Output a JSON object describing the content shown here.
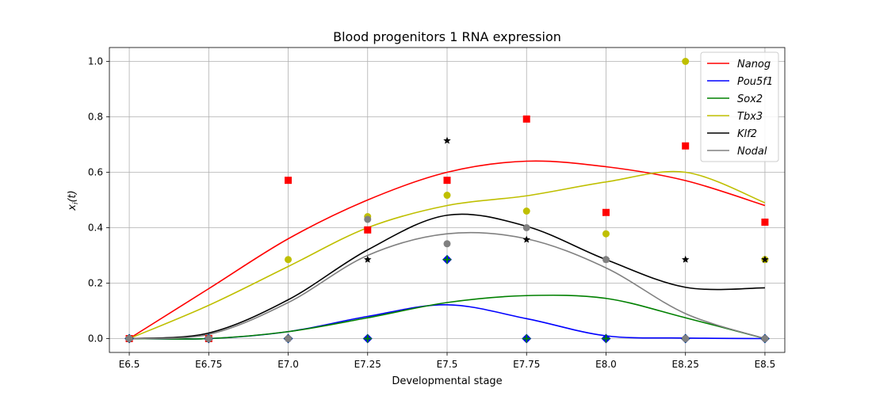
{
  "chart_data": {
    "type": "line",
    "title": "Blood progenitors 1 RNA expression",
    "xlabel": "Developmental stage",
    "ylabel": "x_i(t)",
    "categories": [
      "E6.5",
      "E6.75",
      "E7.0",
      "E7.25",
      "E7.5",
      "E7.75",
      "E8.0",
      "E8.25",
      "E8.5"
    ],
    "y_ticks": [
      "0.0",
      "0.2",
      "0.4",
      "0.6",
      "0.8",
      "1.0"
    ],
    "ylim": [
      -0.05,
      1.05
    ],
    "grid": true,
    "legend_position": "top-right",
    "series": [
      {
        "name": "Nanog",
        "color": "#ff0000",
        "marker": "square",
        "points": [
          0,
          0,
          0.571,
          0.392,
          0.571,
          0.792,
          0.455,
          0.695,
          0.42
        ],
        "curve": [
          0,
          0.18,
          0.36,
          0.5,
          0.6,
          0.64,
          0.62,
          0.57,
          0.48
        ]
      },
      {
        "name": "Pou5f1",
        "color": "#0000ff",
        "marker": "diamond",
        "points": [
          0,
          0,
          0,
          0,
          0.285,
          0,
          0,
          0,
          0
        ],
        "curve": [
          0,
          0,
          0.025,
          0.08,
          0.122,
          0.072,
          0.01,
          0.002,
          0
        ]
      },
      {
        "name": "Sox2",
        "color": "#008000",
        "marker": "plus",
        "points": [
          0,
          0,
          0,
          0,
          0.285,
          0,
          0,
          0,
          0
        ],
        "curve": [
          0,
          0,
          0.025,
          0.075,
          0.13,
          0.155,
          0.145,
          0.075,
          0
        ]
      },
      {
        "name": "Tbx3",
        "color": "#bfbf00",
        "marker": "circle",
        "points": [
          0,
          0,
          0.285,
          0.44,
          0.517,
          0.46,
          0.378,
          1.0,
          0.285
        ],
        "curve": [
          0,
          0.12,
          0.26,
          0.4,
          0.48,
          0.515,
          0.565,
          0.6,
          0.49
        ]
      },
      {
        "name": "Klf2",
        "color": "#000000",
        "marker": "star",
        "points": [
          0,
          0,
          0,
          0.285,
          0.714,
          0.357,
          0.285,
          0.285,
          0.285
        ],
        "curve": [
          0,
          0.02,
          0.14,
          0.32,
          0.445,
          0.405,
          0.285,
          0.185,
          0.183
        ]
      },
      {
        "name": "Nodal",
        "color": "#808080",
        "marker": "circle",
        "points": [
          0,
          0,
          0,
          0.43,
          0.342,
          0.4,
          0.285,
          0,
          0
        ],
        "curve": [
          0,
          0.015,
          0.13,
          0.3,
          0.378,
          0.36,
          0.255,
          0.09,
          0
        ]
      }
    ]
  }
}
